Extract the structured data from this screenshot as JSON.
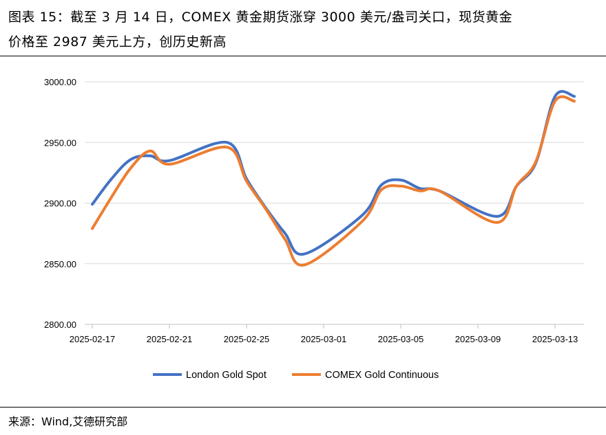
{
  "header": {
    "title_line1": "图表 15：截至 3 月 14 日，COMEX 黄金期货涨穿 3000 美元/盎司关口，现货黄金",
    "title_line2": "价格至 2987 美元上方，创历史新高"
  },
  "footer": {
    "source": "来源：Wind,艾德研究部"
  },
  "chart_data": {
    "type": "line",
    "title": "",
    "xlabel": "",
    "ylabel": "",
    "ylim": [
      2800,
      3000
    ],
    "y_ticks": [
      "2800.00",
      "2850.00",
      "2900.00",
      "2950.00",
      "3000.00"
    ],
    "y_tick_values": [
      2800,
      2850,
      2900,
      2950,
      3000
    ],
    "x_tick_labels": [
      "2025-02-17",
      "2025-02-21",
      "2025-02-25",
      "2025-03-01",
      "2025-03-05",
      "2025-03-09",
      "2025-03-13"
    ],
    "x_range": [
      "2025-02-17",
      "2025-03-14"
    ],
    "grid": "horizontal",
    "legend_position": "bottom",
    "x": [
      "2025-02-17",
      "2025-02-18",
      "2025-02-19",
      "2025-02-20",
      "2025-02-21",
      "2025-02-24",
      "2025-02-25",
      "2025-02-26",
      "2025-02-27",
      "2025-02-28",
      "2025-03-03",
      "2025-03-04",
      "2025-03-05",
      "2025-03-06",
      "2025-03-07",
      "2025-03-10",
      "2025-03-11",
      "2025-03-12",
      "2025-03-13",
      "2025-03-14"
    ],
    "series": [
      {
        "name": "London Gold Spot",
        "color": "#4472C4",
        "values": [
          2899,
          2920,
          2936,
          2939,
          2935,
          2950,
          2920,
          2896,
          2875,
          2858,
          2890,
          2915,
          2919,
          2912,
          2910,
          2889,
          2914,
          2933,
          2988,
          2988
        ]
      },
      {
        "name": "COMEX Gold Continuous",
        "color": "#ED7D31",
        "values": [
          2879,
          2905,
          2929,
          2943,
          2932,
          2946,
          2918,
          2895,
          2870,
          2849,
          2885,
          2911,
          2914,
          2910,
          2910,
          2884,
          2914,
          2934,
          2984,
          2984
        ]
      }
    ]
  }
}
